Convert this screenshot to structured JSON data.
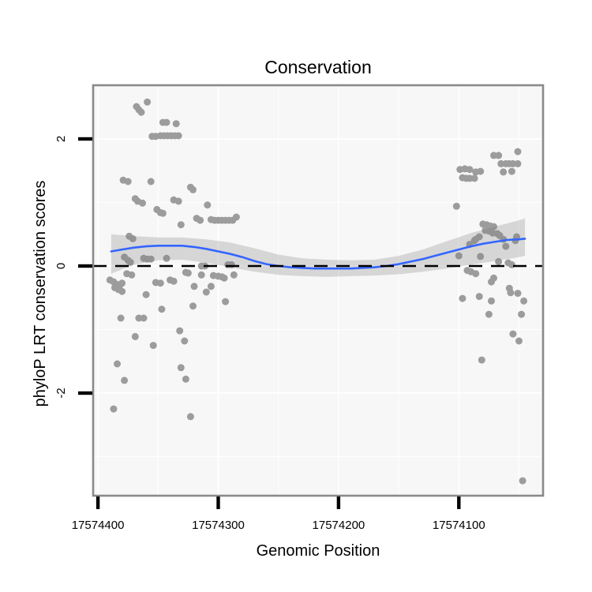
{
  "chart_data": {
    "type": "scatter",
    "title": "Conservation",
    "xlabel": "Genomic Position",
    "ylabel": "phyloP LRT conservation scores",
    "x_axis_reversed": true,
    "xlim": [
      17574404,
      17574030
    ],
    "ylim": [
      2.845,
      -3.615
    ],
    "x_ticks": [
      17574400,
      17574300,
      17574200,
      17574100
    ],
    "x_minor_ticks": [
      17574350,
      17574250,
      17574150,
      17574050
    ],
    "y_ticks": [
      2,
      0,
      -2
    ],
    "y_minor_ticks": [
      1,
      -1,
      -3
    ],
    "grid": true,
    "legend": "none",
    "hline": {
      "y": 0,
      "style": "dashed",
      "color": "#000000"
    },
    "colors": {
      "point": "#9c9c9c",
      "smooth_line": "#3366FF",
      "ribbon": "rgba(127,127,127,0.27)",
      "panel_bg": "#f7f7f7",
      "gridline": "#ffffff",
      "panel_border": "#8a8a8a",
      "tick": "#000000",
      "text": "#000000"
    },
    "points": [
      [
        17574368,
        2.51
      ],
      [
        17574366,
        2.46
      ],
      [
        17574364,
        2.42
      ],
      [
        17574359,
        2.58
      ],
      [
        17574346,
        2.26
      ],
      [
        17574343,
        2.26
      ],
      [
        17574335,
        2.24
      ],
      [
        17574355,
        2.04
      ],
      [
        17574352,
        2.04
      ],
      [
        17574348,
        2.05
      ],
      [
        17574345,
        2.05
      ],
      [
        17574342,
        2.05
      ],
      [
        17574339,
        2.05
      ],
      [
        17574336,
        2.05
      ],
      [
        17574333,
        2.05
      ],
      [
        17574379,
        1.35
      ],
      [
        17574375,
        1.33
      ],
      [
        17574356,
        1.33
      ],
      [
        17574323,
        1.24
      ],
      [
        17574321,
        1.2
      ],
      [
        17574369,
        1.06
      ],
      [
        17574367,
        1.02
      ],
      [
        17574363,
        0.99
      ],
      [
        17574337,
        1.04
      ],
      [
        17574333,
        1.02
      ],
      [
        17574309,
        0.96
      ],
      [
        17574351,
        0.89
      ],
      [
        17574348,
        0.84
      ],
      [
        17574346,
        0.83
      ],
      [
        17574318,
        0.75
      ],
      [
        17574315,
        0.72
      ],
      [
        17574306,
        0.73
      ],
      [
        17574303,
        0.72
      ],
      [
        17574300,
        0.72
      ],
      [
        17574297,
        0.72
      ],
      [
        17574294,
        0.72
      ],
      [
        17574291,
        0.72
      ],
      [
        17574288,
        0.72
      ],
      [
        17574285,
        0.77
      ],
      [
        17574331,
        0.65
      ],
      [
        17574374,
        0.47
      ],
      [
        17574371,
        0.43
      ],
      [
        17574378,
        0.14
      ],
      [
        17574375,
        0.09
      ],
      [
        17574373,
        0.06
      ],
      [
        17574362,
        0.12
      ],
      [
        17574359,
        0.11
      ],
      [
        17574356,
        0.11
      ],
      [
        17574343,
        0.12
      ],
      [
        17574314,
        0.0
      ],
      [
        17574311,
        0.0
      ],
      [
        17574292,
        0.02
      ],
      [
        17574289,
        0.02
      ],
      [
        17574376,
        -0.12
      ],
      [
        17574372,
        -0.14
      ],
      [
        17574327,
        -0.1
      ],
      [
        17574325,
        -0.11
      ],
      [
        17574314,
        -0.14
      ],
      [
        17574304,
        -0.15
      ],
      [
        17574300,
        -0.16
      ],
      [
        17574297,
        -0.17
      ],
      [
        17574295,
        -0.19
      ],
      [
        17574287,
        -0.14
      ],
      [
        17574390,
        -0.22
      ],
      [
        17574387,
        -0.25
      ],
      [
        17574384,
        -0.29
      ],
      [
        17574382,
        -0.31
      ],
      [
        17574380,
        -0.27
      ],
      [
        17574386,
        -0.34
      ],
      [
        17574383,
        -0.37
      ],
      [
        17574380,
        -0.4
      ],
      [
        17574352,
        -0.26
      ],
      [
        17574348,
        -0.27
      ],
      [
        17574340,
        -0.22
      ],
      [
        17574337,
        -0.24
      ],
      [
        17574320,
        -0.32
      ],
      [
        17574360,
        -0.45
      ],
      [
        17574347,
        -0.68
      ],
      [
        17574321,
        -0.63
      ],
      [
        17574310,
        -0.41
      ],
      [
        17574306,
        -0.32
      ],
      [
        17574294,
        -0.56
      ],
      [
        17574381,
        -0.82
      ],
      [
        17574366,
        -0.82
      ],
      [
        17574362,
        -0.82
      ],
      [
        17574369,
        -1.11
      ],
      [
        17574354,
        -1.25
      ],
      [
        17574332,
        -1.02
      ],
      [
        17574328,
        -1.18
      ],
      [
        17574384,
        -1.54
      ],
      [
        17574378,
        -1.8
      ],
      [
        17574331,
        -1.6
      ],
      [
        17574327,
        -1.78
      ],
      [
        17574387,
        -2.25
      ],
      [
        17574323,
        -2.37
      ],
      [
        17574102,
        0.94
      ],
      [
        17574100,
        0.16
      ],
      [
        17574099,
        1.52
      ],
      [
        17574095,
        1.53
      ],
      [
        17574091,
        1.52
      ],
      [
        17574086,
        1.48
      ],
      [
        17574082,
        1.49
      ],
      [
        17574097,
        1.39
      ],
      [
        17574094,
        1.38
      ],
      [
        17574091,
        1.38
      ],
      [
        17574087,
        1.38
      ],
      [
        17574071,
        1.74
      ],
      [
        17574067,
        1.74
      ],
      [
        17574051,
        1.8
      ],
      [
        17574065,
        1.61
      ],
      [
        17574061,
        1.61
      ],
      [
        17574058,
        1.61
      ],
      [
        17574055,
        1.61
      ],
      [
        17574051,
        1.61
      ],
      [
        17574063,
        1.48
      ],
      [
        17574056,
        1.49
      ],
      [
        17574080,
        0.66
      ],
      [
        17574077,
        0.65
      ],
      [
        17574074,
        0.63
      ],
      [
        17574071,
        0.62
      ],
      [
        17574078,
        0.56
      ],
      [
        17574075,
        0.55
      ],
      [
        17574072,
        0.52
      ],
      [
        17574068,
        0.51
      ],
      [
        17574066,
        0.48
      ],
      [
        17574083,
        0.46
      ],
      [
        17574086,
        0.42
      ],
      [
        17574063,
        0.42
      ],
      [
        17574091,
        0.34
      ],
      [
        17574087,
        0.4
      ],
      [
        17574061,
        0.31
      ],
      [
        17574052,
        0.46
      ],
      [
        17574053,
        0.4
      ],
      [
        17574082,
        0.15
      ],
      [
        17574067,
        0.07
      ],
      [
        17574059,
        0.05
      ],
      [
        17574056,
        0.02
      ],
      [
        17574093,
        -0.07
      ],
      [
        17574090,
        -0.09
      ],
      [
        17574086,
        -0.12
      ],
      [
        17574071,
        -0.19
      ],
      [
        17574073,
        -0.25
      ],
      [
        17574097,
        -0.51
      ],
      [
        17574083,
        -0.48
      ],
      [
        17574073,
        -0.55
      ],
      [
        17574058,
        -0.35
      ],
      [
        17574057,
        -0.42
      ],
      [
        17574051,
        -0.43
      ],
      [
        17574046,
        -0.55
      ],
      [
        17574075,
        -0.76
      ],
      [
        17574048,
        -0.76
      ],
      [
        17574055,
        -1.07
      ],
      [
        17574050,
        -1.18
      ],
      [
        17574081,
        -1.48
      ],
      [
        17574047,
        -3.38
      ]
    ],
    "smooth": {
      "line": [
        [
          17574389,
          0.23
        ],
        [
          17574380,
          0.26
        ],
        [
          17574370,
          0.29
        ],
        [
          17574360,
          0.31
        ],
        [
          17574350,
          0.32
        ],
        [
          17574340,
          0.32
        ],
        [
          17574330,
          0.32
        ],
        [
          17574320,
          0.3
        ],
        [
          17574310,
          0.27
        ],
        [
          17574300,
          0.23
        ],
        [
          17574290,
          0.19
        ],
        [
          17574280,
          0.14
        ],
        [
          17574270,
          0.08
        ],
        [
          17574260,
          0.03
        ],
        [
          17574250,
          0.0
        ],
        [
          17574240,
          -0.02
        ],
        [
          17574230,
          -0.03
        ],
        [
          17574220,
          -0.04
        ],
        [
          17574210,
          -0.04
        ],
        [
          17574200,
          -0.04
        ],
        [
          17574190,
          -0.04
        ],
        [
          17574180,
          -0.03
        ],
        [
          17574170,
          -0.02
        ],
        [
          17574160,
          0.0
        ],
        [
          17574150,
          0.03
        ],
        [
          17574140,
          0.07
        ],
        [
          17574130,
          0.11
        ],
        [
          17574120,
          0.16
        ],
        [
          17574110,
          0.21
        ],
        [
          17574100,
          0.26
        ],
        [
          17574090,
          0.31
        ],
        [
          17574080,
          0.35
        ],
        [
          17574070,
          0.38
        ],
        [
          17574060,
          0.41
        ],
        [
          17574050,
          0.42
        ],
        [
          17574045,
          0.43
        ]
      ],
      "ribbon": [
        [
          17574389,
          -0.12,
          0.5
        ],
        [
          17574370,
          0.02,
          0.47
        ],
        [
          17574350,
          0.09,
          0.45
        ],
        [
          17574330,
          0.1,
          0.45
        ],
        [
          17574310,
          0.05,
          0.42
        ],
        [
          17574290,
          -0.02,
          0.37
        ],
        [
          17574270,
          -0.09,
          0.28
        ],
        [
          17574250,
          -0.14,
          0.18
        ],
        [
          17574230,
          -0.16,
          0.12
        ],
        [
          17574210,
          -0.17,
          0.1
        ],
        [
          17574190,
          -0.16,
          0.09
        ],
        [
          17574170,
          -0.15,
          0.1
        ],
        [
          17574150,
          -0.13,
          0.16
        ],
        [
          17574130,
          -0.09,
          0.26
        ],
        [
          17574110,
          -0.04,
          0.39
        ],
        [
          17574090,
          0.02,
          0.52
        ],
        [
          17574070,
          0.08,
          0.62
        ],
        [
          17574050,
          0.14,
          0.72
        ],
        [
          17574045,
          0.16,
          0.75
        ]
      ]
    }
  }
}
